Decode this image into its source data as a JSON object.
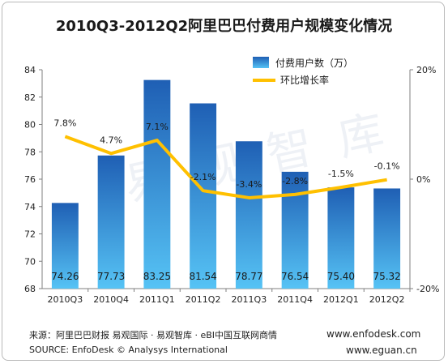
{
  "title": "2010Q3-2012Q2阿里巴巴付费用户规模变化情况",
  "watermark": "易 观 智 库",
  "footer": {
    "source_cn": "来源：阿里巴巴财报 易观国际 · 易观智库 · eBI中国互联网商情",
    "source_en": "SOURCE:  EnfoDesk © Analysys International",
    "url1": "www.enfodesk.com",
    "url2": "www.eguan.cn"
  },
  "colors": {
    "bar_top": "#1f5fb4",
    "bar_bottom": "#56c3f5",
    "line": "#ffc000"
  },
  "chart_data": {
    "type": "bar",
    "title": "2010Q3-2012Q2阿里巴巴付费用户规模变化情况",
    "categories": [
      "2010Q3",
      "2010Q4",
      "2011Q1",
      "2011Q2",
      "2011Q3",
      "2011Q4",
      "2012Q1",
      "2012Q2"
    ],
    "series": [
      {
        "name": "付费用户数（万）",
        "type": "bar",
        "axis": "left",
        "values": [
          74.26,
          77.73,
          83.25,
          81.54,
          78.77,
          76.54,
          75.4,
          75.32
        ],
        "labels": [
          "74.26",
          "77.73",
          "83.25",
          "81.54",
          "78.77",
          "76.54",
          "75.40",
          "75.32"
        ]
      },
      {
        "name": "环比增长率",
        "type": "line",
        "axis": "right",
        "values": [
          7.8,
          4.7,
          7.1,
          -2.1,
          -3.4,
          -2.8,
          -1.5,
          -0.1
        ],
        "labels": [
          "7.8%",
          "4.7%",
          "7.1%",
          "-2.1%",
          "-3.4%",
          "-2.8%",
          "-1.5%",
          "-0.1%"
        ]
      }
    ],
    "ylim": [
      68,
      84
    ],
    "yticks": [
      "68",
      "70",
      "72",
      "74",
      "76",
      "78",
      "80",
      "82",
      "84"
    ],
    "y2lim": [
      -20,
      20
    ],
    "y2ticks": [
      "-20%",
      "0%",
      "20%"
    ],
    "legend": "top-right",
    "grid": false
  }
}
